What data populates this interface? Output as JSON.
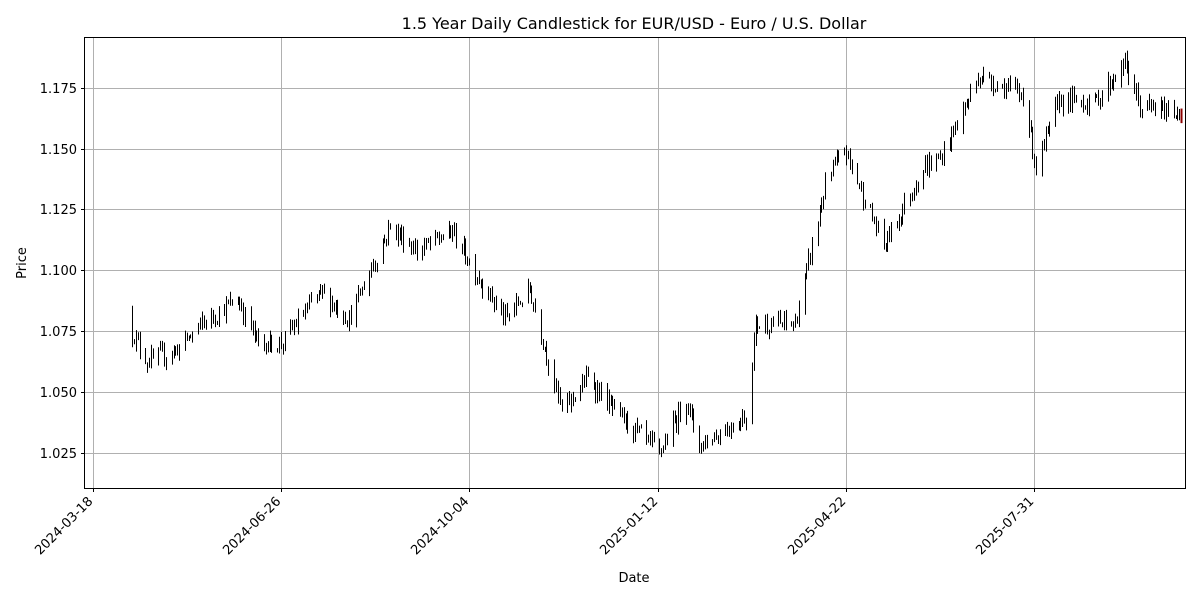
{
  "chart_data": {
    "type": "candlestick",
    "title": "1.5 Year Daily Candlestick for EUR/USD - Euro / U.S. Dollar",
    "xlabel": "Date",
    "ylabel": "Price",
    "x_range": [
      "2024-03-14",
      "2025-10-19"
    ],
    "ylim": [
      1.0105,
      1.1955
    ],
    "grid": true,
    "colors": {
      "up": "#000000",
      "down": "#000000",
      "last": "#8b0000"
    },
    "x_ticks": [
      "2024-03-18",
      "2024-06-26",
      "2024-10-04",
      "2025-01-12",
      "2025-04-22",
      "2025-07-31"
    ],
    "y_ticks": [
      {
        "value": 1.025,
        "label": "1.025"
      },
      {
        "value": 1.05,
        "label": "1.050"
      },
      {
        "value": 1.075,
        "label": "1.075"
      },
      {
        "value": 1.1,
        "label": "1.100"
      },
      {
        "value": 1.125,
        "label": "1.125"
      },
      {
        "value": 1.15,
        "label": "1.150"
      },
      {
        "value": 1.175,
        "label": "1.175"
      }
    ],
    "start_date": "2024-04-08",
    "anchors": [
      [
        "2024-04-08",
        1.0745
      ],
      [
        "2024-04-16",
        1.0625
      ],
      [
        "2024-05-01",
        1.067
      ],
      [
        "2024-05-15",
        1.078
      ],
      [
        "2024-06-03",
        1.088
      ],
      [
        "2024-06-14",
        1.07
      ],
      [
        "2024-06-26",
        1.07
      ],
      [
        "2024-07-17",
        1.091
      ],
      [
        "2024-08-01",
        1.08
      ],
      [
        "2024-08-23",
        1.118
      ],
      [
        "2024-09-06",
        1.108
      ],
      [
        "2024-09-25",
        1.116
      ],
      [
        "2024-10-08",
        1.098
      ],
      [
        "2024-10-23",
        1.08
      ],
      [
        "2024-11-05",
        1.092
      ],
      [
        "2024-11-22",
        1.042
      ],
      [
        "2024-12-06",
        1.056
      ],
      [
        "2024-12-20",
        1.042
      ],
      [
        "2025-01-13",
        1.025
      ],
      [
        "2025-01-27",
        1.047
      ],
      [
        "2025-02-03",
        1.028
      ],
      [
        "2025-02-28",
        1.04
      ],
      [
        "2025-03-05",
        1.078
      ],
      [
        "2025-03-26",
        1.078
      ],
      [
        "2025-04-11",
        1.135
      ],
      [
        "2025-04-21",
        1.15
      ],
      [
        "2025-05-12",
        1.11
      ],
      [
        "2025-06-02",
        1.142
      ],
      [
        "2025-06-11",
        1.146
      ],
      [
        "2025-06-27",
        1.172
      ],
      [
        "2025-07-01",
        1.18
      ],
      [
        "2025-07-25",
        1.172
      ],
      [
        "2025-08-01",
        1.142
      ],
      [
        "2025-08-13",
        1.17
      ],
      [
        "2025-09-01",
        1.169
      ],
      [
        "2025-09-17",
        1.185
      ],
      [
        "2025-09-25",
        1.167
      ],
      [
        "2025-10-17",
        1.165
      ]
    ],
    "last_candle": {
      "date": "2025-10-17",
      "open": 1.1665,
      "high": 1.1665,
      "low": 1.1605,
      "close": 1.161
    }
  }
}
